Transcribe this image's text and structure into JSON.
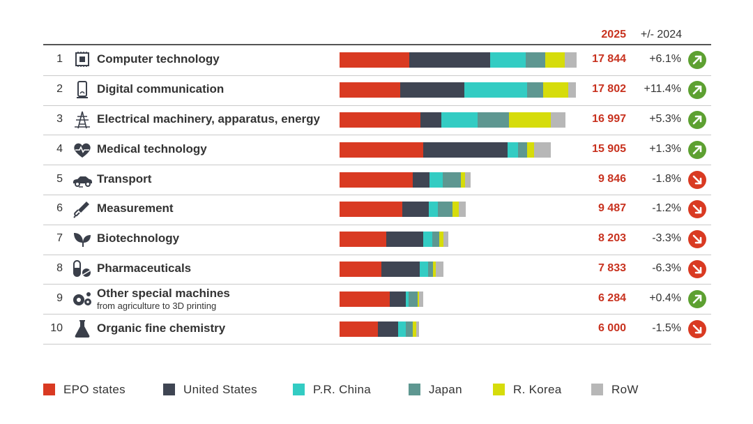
{
  "header": {
    "year": "2025",
    "change_label": "+/- 2024"
  },
  "colors": {
    "EPO states": "#d93a22",
    "United States": "#3f4553",
    "P.R. China": "#33ccc3",
    "Japan": "#5e9791",
    "R. Korea": "#d6dc0b",
    "RoW": "#b7b7b7",
    "value": "#c8321f",
    "up": "#5da031",
    "down": "#d93a22"
  },
  "legend": [
    {
      "label": "EPO states",
      "color": "#d93a22"
    },
    {
      "label": "United States",
      "color": "#3f4553"
    },
    {
      "label": "P.R. China",
      "color": "#33ccc3"
    },
    {
      "label": "Japan",
      "color": "#5e9791"
    },
    {
      "label": "R. Korea",
      "color": "#d6dc0b"
    },
    {
      "label": "RoW",
      "color": "#b7b7b7"
    }
  ],
  "chart_data": {
    "type": "bar",
    "orientation": "horizontal",
    "stacked": true,
    "title": "",
    "series_names": [
      "EPO states",
      "United States",
      "P.R. China",
      "Japan",
      "R. Korea",
      "RoW"
    ],
    "rows": [
      {
        "rank": "1",
        "label": "Computer technology",
        "icon": "chip-icon",
        "value": "17 844",
        "total": 17844,
        "change": "+6.1%",
        "direction": "up",
        "shares": [
          5300,
          6200,
          2700,
          1500,
          1500,
          900
        ]
      },
      {
        "rank": "2",
        "label": "Digital communication",
        "icon": "smartphone-icon",
        "value": "17 802",
        "total": 17802,
        "change": "+11.4%",
        "direction": "up",
        "shares": [
          4600,
          4900,
          4800,
          1200,
          1900,
          600
        ]
      },
      {
        "rank": "3",
        "label": "Electrical machinery, apparatus, energy",
        "icon": "power-pylon-icon",
        "value": "16 997",
        "total": 16997,
        "change": "+5.3%",
        "direction": "up",
        "shares": [
          6200,
          1600,
          2800,
          2400,
          3200,
          1100
        ]
      },
      {
        "rank": "4",
        "label": "Medical technology",
        "icon": "heart-rate-icon",
        "value": "15 905",
        "total": 15905,
        "change": "+1.3%",
        "direction": "up",
        "shares": [
          6400,
          6400,
          800,
          700,
          500,
          1300
        ]
      },
      {
        "rank": "5",
        "label": "Transport",
        "icon": "car-icon",
        "value": "9 846",
        "total": 9846,
        "change": "-1.8%",
        "direction": "down",
        "shares": [
          5600,
          1300,
          1000,
          1400,
          300,
          400
        ]
      },
      {
        "rank": "6",
        "label": "Measurement",
        "icon": "thermometer-icon",
        "value": "9 487",
        "total": 9487,
        "change": "-1.2%",
        "direction": "down",
        "shares": [
          4800,
          2000,
          700,
          1100,
          500,
          500
        ]
      },
      {
        "rank": "7",
        "label": "Biotechnology",
        "icon": "leaf-icon",
        "value": "8 203",
        "total": 8203,
        "change": "-3.3%",
        "direction": "down",
        "shares": [
          3500,
          2800,
          700,
          500,
          300,
          400
        ]
      },
      {
        "rank": "8",
        "label": "Pharmaceuticals",
        "icon": "pill-icon",
        "value": "7 833",
        "total": 7833,
        "change": "-6.3%",
        "direction": "down",
        "shares": [
          3200,
          2900,
          600,
          400,
          200,
          600
        ]
      },
      {
        "rank": "9",
        "label": "Other special machines",
        "sublabel": "from agriculture to 3D printing",
        "icon": "gears-icon",
        "value": "6 284",
        "total": 6284,
        "change": "+0.4%",
        "direction": "up",
        "shares": [
          3800,
          1200,
          200,
          700,
          100,
          300
        ]
      },
      {
        "rank": "10",
        "label": "Organic fine chemistry",
        "icon": "flask-icon",
        "value": "6 000",
        "total": 6000,
        "change": "-1.5%",
        "direction": "down",
        "shares": [
          2900,
          1500,
          600,
          500,
          300,
          200
        ]
      }
    ],
    "legend_position": "bottom",
    "grid": false
  }
}
